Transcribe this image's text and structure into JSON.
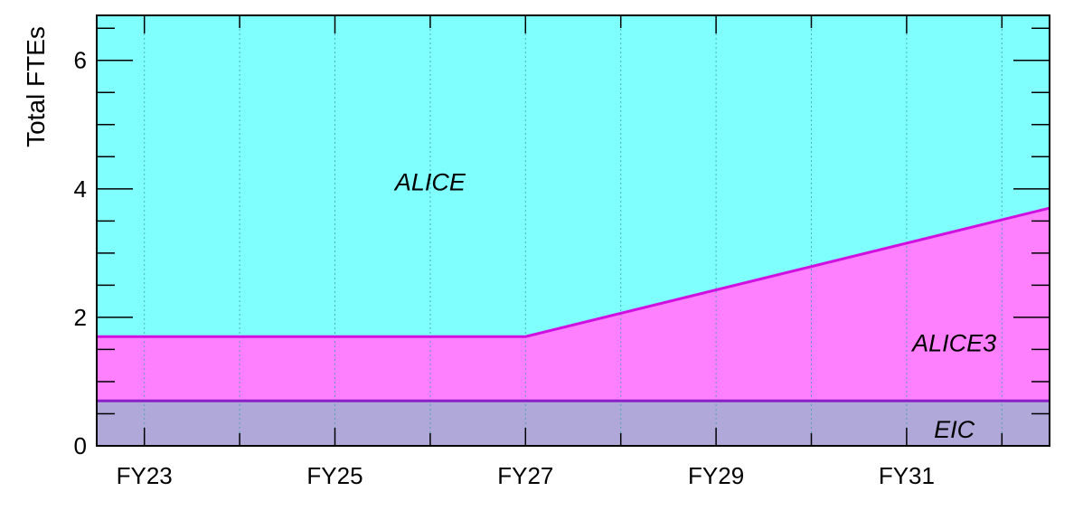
{
  "chart_data": {
    "type": "area",
    "stacked": true,
    "title": "",
    "xlabel": "",
    "ylabel": "Total FTEs",
    "xlim": [
      2022.5,
      2032.5
    ],
    "ylim": [
      0,
      6.7
    ],
    "x_ticks": [
      {
        "x": 2023,
        "label": "FY23"
      },
      {
        "x": 2025,
        "label": "FY25"
      },
      {
        "x": 2027,
        "label": "FY27"
      },
      {
        "x": 2029,
        "label": "FY29"
      },
      {
        "x": 2031,
        "label": "FY31"
      }
    ],
    "y_ticks": [
      {
        "y": 0,
        "label": "0"
      },
      {
        "y": 2,
        "label": "2"
      },
      {
        "y": 4,
        "label": "4"
      },
      {
        "y": 6,
        "label": "6"
      }
    ],
    "grid": "vertical dotted",
    "series": [
      {
        "name": "EIC",
        "color": "#b0a8d8",
        "line_color": "#8a20c8",
        "points": [
          [
            2022.5,
            0.7
          ],
          [
            2032.5,
            0.7
          ]
        ],
        "label_at": [
          2031.5,
          0.25
        ]
      },
      {
        "name": "ALICE3",
        "color": "#ff80ff",
        "line_color": "#d010e0",
        "points": [
          [
            2022.5,
            1.7
          ],
          [
            2027.0,
            1.7
          ],
          [
            2032.5,
            3.7
          ]
        ],
        "label_at": [
          2031.5,
          1.6
        ]
      },
      {
        "name": "ALICE",
        "color": "#80ffff",
        "line_color": "#80ffff",
        "points": [
          [
            2022.5,
            6.7
          ],
          [
            2032.5,
            6.7
          ]
        ],
        "label_at": [
          2026.0,
          4.1
        ]
      }
    ]
  }
}
